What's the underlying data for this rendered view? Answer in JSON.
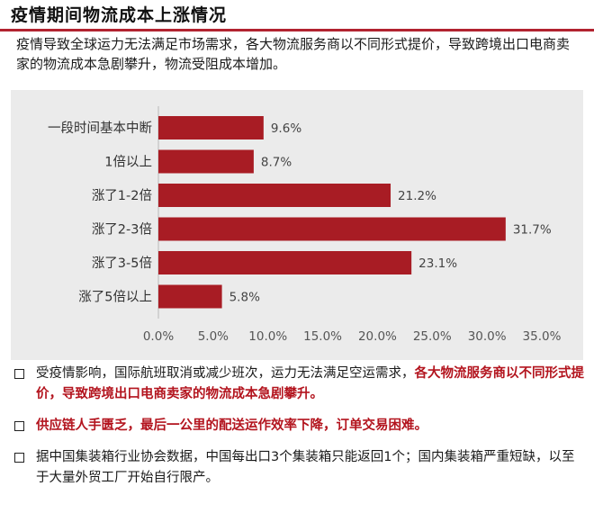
{
  "header": {
    "title": "疫情期间物流成本上涨情况",
    "intro": "疫情导致全球运力无法满足市场需求，各大物流服务商以不同形式提价，导致跨境出口电商卖家的物流成本急剧攀升，物流受阻成本增加。"
  },
  "colors": {
    "accent": "#b22330",
    "bar": "#a81c24",
    "panel": "#ebebeb"
  },
  "chart_data": {
    "type": "bar",
    "orientation": "horizontal",
    "categories": [
      "一段时间基本中断",
      "1倍以上",
      "涨了1-2倍",
      "涨了2-3倍",
      "涨了3-5倍",
      "涨了5倍以上"
    ],
    "values": [
      9.6,
      8.7,
      21.2,
      31.7,
      23.1,
      5.8
    ],
    "value_labels": [
      "9.6%",
      "8.7%",
      "21.2%",
      "31.7%",
      "23.1%",
      "5.8%"
    ],
    "xlim": [
      0,
      35
    ],
    "x_ticks": [
      0,
      5,
      10,
      15,
      20,
      25,
      30,
      35
    ],
    "x_tick_labels": [
      "0.0%",
      "5.0%",
      "10.0%",
      "15.0%",
      "20.0%",
      "25.0%",
      "30.0%",
      "35.0%"
    ],
    "grid": false,
    "legend": "none"
  },
  "bullets": [
    {
      "normal": "受疫情影响，国际航班取消或减少班次，运力无法满足空运需求，",
      "highlight": "各大物流服务商以不同形式提价，导致跨境出口电商卖家的物流成本急剧攀升。"
    },
    {
      "normal": "",
      "highlight": "供应链人手匮乏，最后一公里的配送运作效率下降，订单交易困难。"
    },
    {
      "normal": "据中国集装箱行业协会数据，中国每出口3个集装箱只能返回1个；国内集装箱严重短缺，以至于大量外贸工厂开始自行限产。",
      "highlight": ""
    }
  ]
}
